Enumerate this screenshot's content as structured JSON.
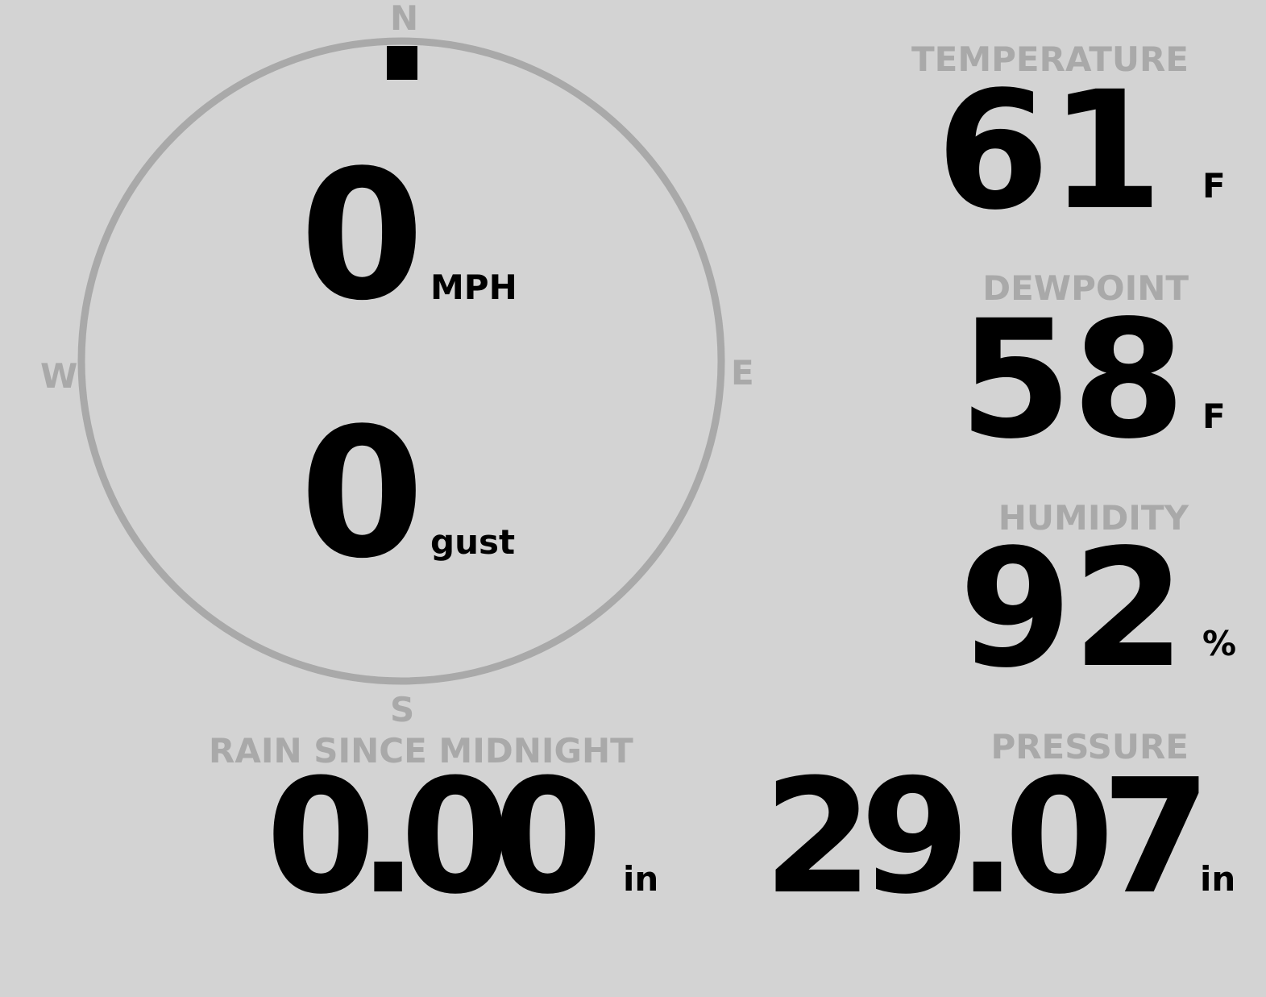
{
  "colors": {
    "background": "#d3d3d3",
    "label": "#a9a9a9",
    "value": "#000000"
  },
  "wind": {
    "direction_degrees": 0,
    "compass": {
      "n": "N",
      "e": "E",
      "s": "S",
      "w": "W"
    },
    "speed": "0",
    "speed_unit": "MPH",
    "gust": "0",
    "gust_unit": "gust"
  },
  "temperature": {
    "label": "TEMPERATURE",
    "value": "61",
    "unit": "F"
  },
  "dewpoint": {
    "label": "DEWPOINT",
    "value": "58",
    "unit": "F"
  },
  "humidity": {
    "label": "HUMIDITY",
    "value": "92",
    "unit": "%"
  },
  "rain": {
    "label": "RAIN SINCE MIDNIGHT",
    "value": "0.00",
    "unit": "in"
  },
  "pressure": {
    "label": "PRESSURE",
    "value": "29.07",
    "unit": "in"
  }
}
